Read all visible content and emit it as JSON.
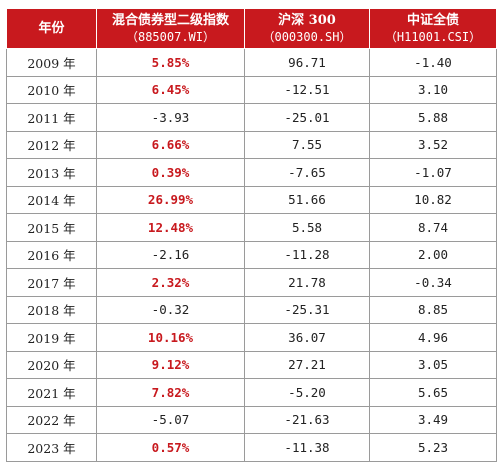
{
  "colors": {
    "header_bg": "#c8191e",
    "header_text": "#ffffff",
    "positive_highlight": "#c8191e",
    "cell_text": "#222222",
    "grid": "#9a9a9a"
  },
  "table": {
    "headers": [
      {
        "title": "年份",
        "subtitle": ""
      },
      {
        "title": "混合债券型二级指数",
        "subtitle": "（885007.WI）"
      },
      {
        "title": "沪深 300",
        "subtitle": "（000300.SH）"
      },
      {
        "title": "中证全债",
        "subtitle": "（H11001.CSI）"
      }
    ],
    "rows": [
      {
        "year": "2009 年",
        "mixed_bond": "5.85%",
        "mixed_bond_positive": true,
        "hs300": "96.71",
        "csi_bond": "-1.40"
      },
      {
        "year": "2010 年",
        "mixed_bond": "6.45%",
        "mixed_bond_positive": true,
        "hs300": "-12.51",
        "csi_bond": "3.10"
      },
      {
        "year": "2011 年",
        "mixed_bond": "-3.93",
        "mixed_bond_positive": false,
        "hs300": "-25.01",
        "csi_bond": "5.88"
      },
      {
        "year": "2012 年",
        "mixed_bond": "6.66%",
        "mixed_bond_positive": true,
        "hs300": "7.55",
        "csi_bond": "3.52"
      },
      {
        "year": "2013 年",
        "mixed_bond": "0.39%",
        "mixed_bond_positive": true,
        "hs300": "-7.65",
        "csi_bond": "-1.07"
      },
      {
        "year": "2014 年",
        "mixed_bond": "26.99%",
        "mixed_bond_positive": true,
        "hs300": "51.66",
        "csi_bond": "10.82"
      },
      {
        "year": "2015 年",
        "mixed_bond": "12.48%",
        "mixed_bond_positive": true,
        "hs300": "5.58",
        "csi_bond": "8.74"
      },
      {
        "year": "2016 年",
        "mixed_bond": "-2.16",
        "mixed_bond_positive": false,
        "hs300": "-11.28",
        "csi_bond": "2.00"
      },
      {
        "year": "2017 年",
        "mixed_bond": "2.32%",
        "mixed_bond_positive": true,
        "hs300": "21.78",
        "csi_bond": "-0.34"
      },
      {
        "year": "2018 年",
        "mixed_bond": "-0.32",
        "mixed_bond_positive": false,
        "hs300": "-25.31",
        "csi_bond": "8.85"
      },
      {
        "year": "2019 年",
        "mixed_bond": "10.16%",
        "mixed_bond_positive": true,
        "hs300": "36.07",
        "csi_bond": "4.96"
      },
      {
        "year": "2020 年",
        "mixed_bond": "9.12%",
        "mixed_bond_positive": true,
        "hs300": "27.21",
        "csi_bond": "3.05"
      },
      {
        "year": "2021 年",
        "mixed_bond": "7.82%",
        "mixed_bond_positive": true,
        "hs300": "-5.20",
        "csi_bond": "5.65"
      },
      {
        "year": "2022 年",
        "mixed_bond": "-5.07",
        "mixed_bond_positive": false,
        "hs300": "-21.63",
        "csi_bond": "3.49"
      },
      {
        "year": "2023 年",
        "mixed_bond": "0.57%",
        "mixed_bond_positive": true,
        "hs300": "-11.38",
        "csi_bond": "5.23"
      }
    ]
  }
}
